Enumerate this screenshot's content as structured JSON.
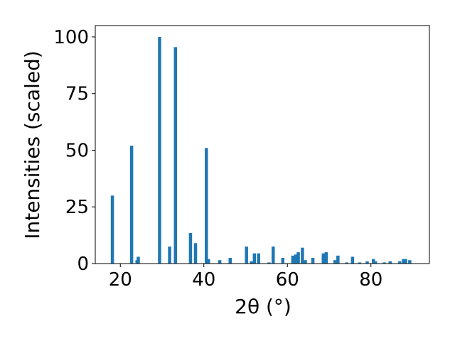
{
  "chart_data": {
    "type": "bar",
    "xlabel": "2θ (°)",
    "ylabel": "Intensities (scaled)",
    "xlim": [
      14,
      94
    ],
    "ylim": [
      0,
      105
    ],
    "xticks": [
      20,
      40,
      60,
      80
    ],
    "yticks": [
      0,
      25,
      50,
      75,
      100
    ],
    "grid": false,
    "bar_color": "#1f77b4",
    "series": [
      {
        "x": [
          18.1,
          22.7,
          24.0,
          24.3,
          29.4,
          31.8,
          33.2,
          36.8,
          38.0,
          40.6,
          41.1,
          43.8,
          46.3,
          50.2,
          51.4,
          52.1,
          53.1,
          55.6,
          56.6,
          58.9,
          61.3,
          62.0,
          62.6,
          63.6,
          64.3,
          66.1,
          68.6,
          69.3,
          71.4,
          72.1,
          74.2,
          75.6,
          77.3,
          79.1,
          80.6,
          81.1,
          83.2,
          84.6,
          86.9,
          87.8,
          88.3,
          89.3
        ],
        "y": [
          30,
          52,
          1.5,
          3,
          100,
          7.5,
          95.5,
          13.5,
          9,
          51,
          2,
          1.5,
          2.5,
          7.5,
          1,
          4.5,
          4.5,
          0.5,
          7.5,
          2.5,
          3.5,
          4,
          5,
          7,
          1.5,
          2.5,
          4.5,
          5,
          1.5,
          3.5,
          0.5,
          3,
          0.5,
          1,
          2,
          1,
          0.5,
          1,
          1,
          2,
          2,
          1.5
        ]
      }
    ]
  }
}
